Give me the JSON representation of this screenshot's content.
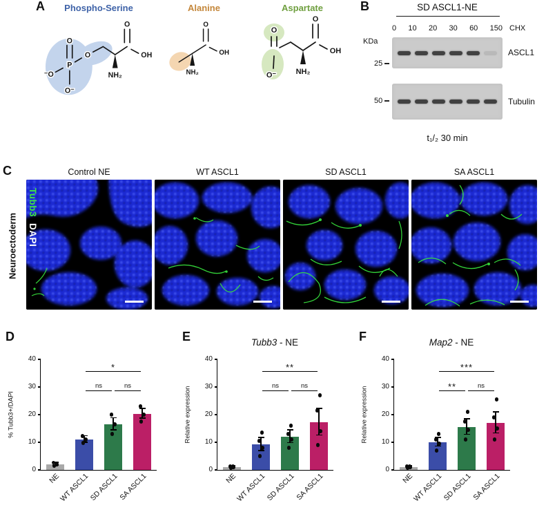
{
  "panels": {
    "a": "A",
    "b": "B",
    "c": "C",
    "d": "D",
    "e": "E",
    "f": "F"
  },
  "panelA": {
    "molecules": [
      {
        "name": "Phospho-Serine",
        "color": "#3f63a8",
        "highlight": "#b9cde9",
        "atoms": {
          "o_top": "O",
          "o_left": "⁻O",
          "o_bottom": "O⁻",
          "p": "P",
          "o_bridge": "O",
          "o_carboxyl": "O",
          "oh": "OH",
          "nh2": "NH₂"
        }
      },
      {
        "name": "Alanine",
        "color": "#c4873b",
        "highlight": "#f3cfa4",
        "atoms": {
          "o_carboxyl": "O",
          "oh": "OH",
          "nh2": "NH₂"
        }
      },
      {
        "name": "Aspartate",
        "color": "#6f9f3f",
        "highlight": "#cfe4b6",
        "atoms": {
          "o_left": "O",
          "o_minus": "O⁻",
          "o_carboxyl": "O",
          "oh": "OH",
          "nh2": "NH₂"
        }
      }
    ]
  },
  "panelB": {
    "title": "SD ASCL1-NE",
    "kda": "KDa",
    "chx": "CHX",
    "lanes": [
      "0",
      "10",
      "20",
      "30",
      "60",
      "150"
    ],
    "blots": [
      {
        "marker": "25",
        "label": "ASCL1",
        "bands": [
          1,
          1,
          1,
          1,
          1,
          0
        ]
      },
      {
        "marker": "50",
        "label": "Tubulin",
        "bands": [
          1,
          1,
          1,
          1,
          1,
          1
        ]
      }
    ],
    "half_life": "t₁/₂ 30 min"
  },
  "panelC": {
    "row_label": "Neuroectoderm",
    "stains": {
      "tubb3": "Tubb3",
      "dapi": "DAPI"
    },
    "columns": [
      "Control NE",
      "WT ASCL1",
      "SD ASCL1",
      "SA ASCL1"
    ]
  },
  "chart_data": [
    {
      "id": "D",
      "type": "bar",
      "title": "",
      "ylabel": "% Tubb3+/DAPI",
      "categories": [
        "NE",
        "WT ASCL1",
        "SD ASCL1",
        "SA ASCL1"
      ],
      "values": [
        2,
        11,
        16.5,
        20.3
      ],
      "errors": [
        0.5,
        1.2,
        2.2,
        1.8
      ],
      "points": [
        [
          1.4,
          2,
          2.6
        ],
        [
          9.8,
          11,
          12.3
        ],
        [
          13,
          16.5,
          20
        ],
        [
          17.5,
          20,
          23
        ]
      ],
      "colors": [
        "#a9a9a9",
        "#3b4da8",
        "#2d7a4a",
        "#bb1f66"
      ],
      "ylim": [
        0,
        40
      ],
      "yticks": [
        0,
        10,
        20,
        30,
        40
      ],
      "grid": false,
      "significance": [
        {
          "from": 1,
          "to": 3,
          "label": "*",
          "y": 35.5
        },
        {
          "from": 1,
          "to": 2,
          "label": "ns",
          "y": 28.5
        },
        {
          "from": 2,
          "to": 3,
          "label": "ns",
          "y": 28.5
        }
      ]
    },
    {
      "id": "E",
      "type": "bar",
      "title_italic": "Tubb3",
      "title_suffix": " - NE",
      "ylabel": "Relative expression",
      "categories": [
        "NE",
        "WT ASCL1",
        "SD ASCL1",
        "SA ASCL1"
      ],
      "values": [
        1,
        9.2,
        12,
        17.2
      ],
      "errors": [
        0.3,
        2.4,
        2.3,
        4.8
      ],
      "points": [
        [
          0.7,
          0.95,
          1.2,
          1.4
        ],
        [
          5,
          8,
          10.5,
          13.5
        ],
        [
          8,
          11,
          13,
          16
        ],
        [
          9,
          14,
          21.5,
          27
        ]
      ],
      "colors": [
        "#a9a9a9",
        "#3b4da8",
        "#2d7a4a",
        "#bb1f66"
      ],
      "ylim": [
        0,
        40
      ],
      "yticks": [
        0,
        10,
        20,
        30,
        40
      ],
      "grid": false,
      "significance": [
        {
          "from": 1,
          "to": 3,
          "label": "**",
          "y": 35.5
        },
        {
          "from": 1,
          "to": 2,
          "label": "ns",
          "y": 28.5
        },
        {
          "from": 2,
          "to": 3,
          "label": "ns",
          "y": 28.5
        }
      ]
    },
    {
      "id": "F",
      "type": "bar",
      "title_italic": "Map2",
      "title_suffix": " - NE",
      "ylabel": "Relative expression",
      "categories": [
        "NE",
        "WT ASCL1",
        "SD ASCL1",
        "SA ASCL1"
      ],
      "values": [
        1,
        10,
        15.5,
        17
      ],
      "errors": [
        0.3,
        1.6,
        2.8,
        3.8
      ],
      "points": [
        [
          0.7,
          0.95,
          1.2,
          1.4
        ],
        [
          7,
          9.5,
          11,
          13
        ],
        [
          11,
          14.5,
          17.5,
          21
        ],
        [
          11,
          15,
          19,
          25.5
        ]
      ],
      "colors": [
        "#a9a9a9",
        "#3b4da8",
        "#2d7a4a",
        "#bb1f66"
      ],
      "ylim": [
        0,
        40
      ],
      "yticks": [
        0,
        10,
        20,
        30,
        40
      ],
      "grid": false,
      "significance": [
        {
          "from": 1,
          "to": 3,
          "label": "***",
          "y": 35.5
        },
        {
          "from": 1,
          "to": 2,
          "label": "**",
          "y": 28.5
        },
        {
          "from": 2,
          "to": 3,
          "label": "ns",
          "y": 28.5
        }
      ]
    }
  ]
}
